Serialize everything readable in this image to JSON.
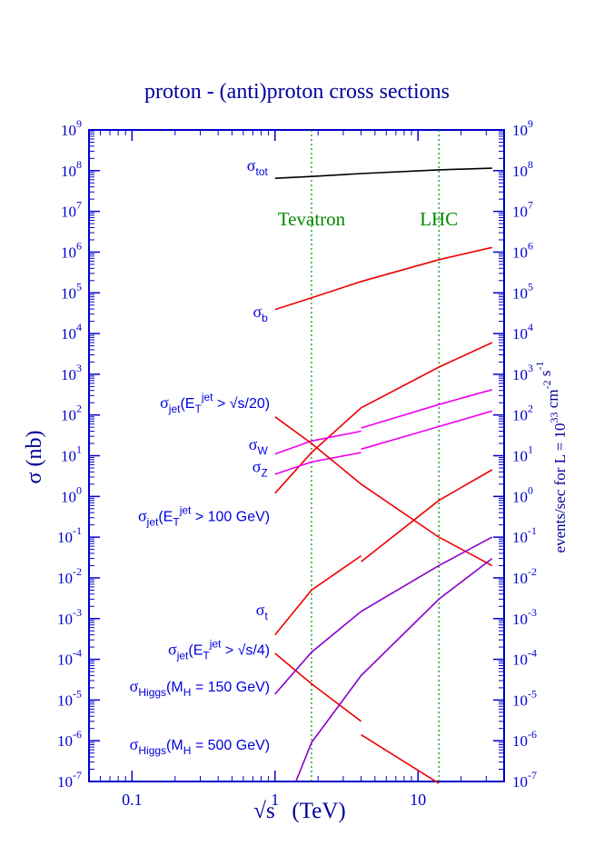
{
  "chart_data": {
    "type": "line",
    "title": "proton - (anti)proton cross sections",
    "xlabel": "√s   (TeV)",
    "ylabel": "σ (nb)",
    "y2label": "events/sec for L = 10^33 cm^-2 s^-1",
    "x_scale": "log",
    "y_scale": "log",
    "xlim": [
      0.05,
      40
    ],
    "ylim": [
      1e-07,
      1000000000.0
    ],
    "x_ticks": [
      {
        "value": 0.1,
        "label": "0.1"
      },
      {
        "value": 1,
        "label": "1"
      },
      {
        "value": 10,
        "label": "10"
      }
    ],
    "y_ticks": [
      {
        "exp": 9
      },
      {
        "exp": 8
      },
      {
        "exp": 7
      },
      {
        "exp": 6
      },
      {
        "exp": 5
      },
      {
        "exp": 4
      },
      {
        "exp": 3
      },
      {
        "exp": 2
      },
      {
        "exp": 1
      },
      {
        "exp": 0
      },
      {
        "exp": -1
      },
      {
        "exp": -2
      },
      {
        "exp": -3
      },
      {
        "exp": -4
      },
      {
        "exp": -5
      },
      {
        "exp": -6
      },
      {
        "exp": -7
      }
    ],
    "y_tick_base": "10",
    "vlines": [
      {
        "x": 1.8,
        "label": "Tevatron"
      },
      {
        "x": 14,
        "label": "LHC"
      }
    ],
    "colors": {
      "axis": "#0000cc",
      "text": "#0000dd",
      "title": "#000099",
      "black": "#000000",
      "red": "#ee0000",
      "magenta": "#ee00ee",
      "purple": "#8800cc",
      "green": "#008800"
    },
    "series": [
      {
        "key": "tot",
        "color": "black",
        "segments": [
          [
            [
              1,
              65000000.0
            ],
            [
              1.8,
              72000000.0
            ],
            [
              4,
              85000000.0
            ],
            [
              14,
              105000000.0
            ],
            [
              33,
              115000000.0
            ]
          ]
        ]
      },
      {
        "key": "b",
        "color": "red",
        "segments": [
          [
            [
              1,
              39000.0
            ],
            [
              1.8,
              75000.0
            ],
            [
              4,
              190000.0
            ],
            [
              14,
              650000.0
            ],
            [
              33,
              1300000.0
            ]
          ]
        ]
      },
      {
        "key": "jet_rs20",
        "color": "red",
        "segments": [
          [
            [
              1,
              1.2
            ],
            [
              1.8,
              12
            ],
            [
              4,
              150
            ],
            [
              14,
              1500
            ],
            [
              33,
              6000
            ]
          ]
        ]
      },
      {
        "key": "W",
        "color": "magenta",
        "segments": [
          [
            [
              1,
              11
            ],
            [
              1.8,
              23
            ],
            [
              4,
              40
            ]
          ],
          [
            [
              4,
              48
            ],
            [
              14,
              180
            ],
            [
              33,
              420
            ]
          ]
        ]
      },
      {
        "key": "Z",
        "color": "magenta",
        "segments": [
          [
            [
              1,
              3.5
            ],
            [
              1.8,
              7
            ],
            [
              4,
              12
            ]
          ],
          [
            [
              4,
              14.5
            ],
            [
              14,
              52
            ],
            [
              33,
              125
            ]
          ]
        ]
      },
      {
        "key": "jet_100",
        "color": "red",
        "segments": [
          [
            [
              1,
              90
            ],
            [
              1.8,
              20
            ],
            [
              4,
              2
            ],
            [
              14,
              0.1
            ],
            [
              33,
              0.02
            ]
          ]
        ]
      },
      {
        "key": "t",
        "color": "red",
        "segments": [
          [
            [
              1,
              0.0004
            ],
            [
              1.8,
              0.005
            ],
            [
              4,
              0.035
            ]
          ],
          [
            [
              4,
              0.025
            ],
            [
              14,
              0.8
            ],
            [
              33,
              4.5
            ]
          ]
        ]
      },
      {
        "key": "jet_rs4",
        "color": "red",
        "segments": [
          [
            [
              1,
              0.00014
            ],
            [
              1.8,
              2.5e-05
            ],
            [
              4,
              3e-06
            ]
          ],
          [
            [
              4,
              1.4e-06
            ],
            [
              14,
              9e-08
            ]
          ]
        ]
      },
      {
        "key": "higgs150",
        "color": "purple",
        "segments": [
          [
            [
              1,
              1.4e-05
            ],
            [
              1.8,
              0.00015
            ],
            [
              4,
              0.0015
            ],
            [
              14,
              0.02
            ],
            [
              33,
              0.1
            ]
          ]
        ]
      },
      {
        "key": "higgs500",
        "color": "purple",
        "segments": [
          [
            [
              1.4,
              1e-07
            ],
            [
              1.8,
              9e-07
            ],
            [
              4,
              4e-05
            ],
            [
              14,
              0.003
            ],
            [
              33,
              0.03
            ]
          ]
        ]
      }
    ],
    "labels": [
      {
        "key": "tot",
        "main": "σ",
        "sub": "tot",
        "sup": "",
        "rest": "",
        "anchor": [
          0.89,
          100000000.0
        ]
      },
      {
        "key": "b",
        "main": "σ",
        "sub": "b",
        "sup": "",
        "rest": "",
        "anchor": [
          0.89,
          25000.0
        ]
      },
      {
        "key": "jet_rs20",
        "main": "σ",
        "sub": "jet",
        "pre": "(E",
        "sub2": "T",
        "sup": "jet",
        "rest": " > √s/20)",
        "anchor": [
          0.92,
          150
        ]
      },
      {
        "key": "W",
        "main": "σ",
        "sub": "W",
        "sup": "",
        "rest": "",
        "anchor": [
          0.89,
          14
        ]
      },
      {
        "key": "Z",
        "main": "σ",
        "sub": "Z",
        "sup": "",
        "rest": "",
        "anchor": [
          0.89,
          4
        ]
      },
      {
        "key": "jet_100",
        "main": "σ",
        "sub": "jet",
        "pre": "(E",
        "sub2": "T",
        "sup": "jet",
        "rest": " > 100 GeV)",
        "anchor": [
          0.92,
          0.25
        ]
      },
      {
        "key": "t",
        "main": "σ",
        "sub": "t",
        "sup": "",
        "rest": "",
        "anchor": [
          0.89,
          0.0012
        ]
      },
      {
        "key": "jet_rs4",
        "main": "σ",
        "sub": "jet",
        "pre": "(E",
        "sub2": "T",
        "sup": "jet",
        "rest": " > √s/4)",
        "anchor": [
          0.92,
          0.00013
        ]
      },
      {
        "key": "higgs150",
        "main": "σ",
        "sub": "Higgs",
        "pre": "(M",
        "sub2": "H",
        "sup": "",
        "rest": " = 150 GeV)",
        "anchor": [
          0.92,
          1.6e-05
        ]
      },
      {
        "key": "higgs500",
        "main": "σ",
        "sub": "Higgs",
        "pre": "(M",
        "sub2": "H",
        "sup": "",
        "rest": " = 500 GeV)",
        "anchor": [
          0.92,
          6e-07
        ]
      }
    ]
  }
}
